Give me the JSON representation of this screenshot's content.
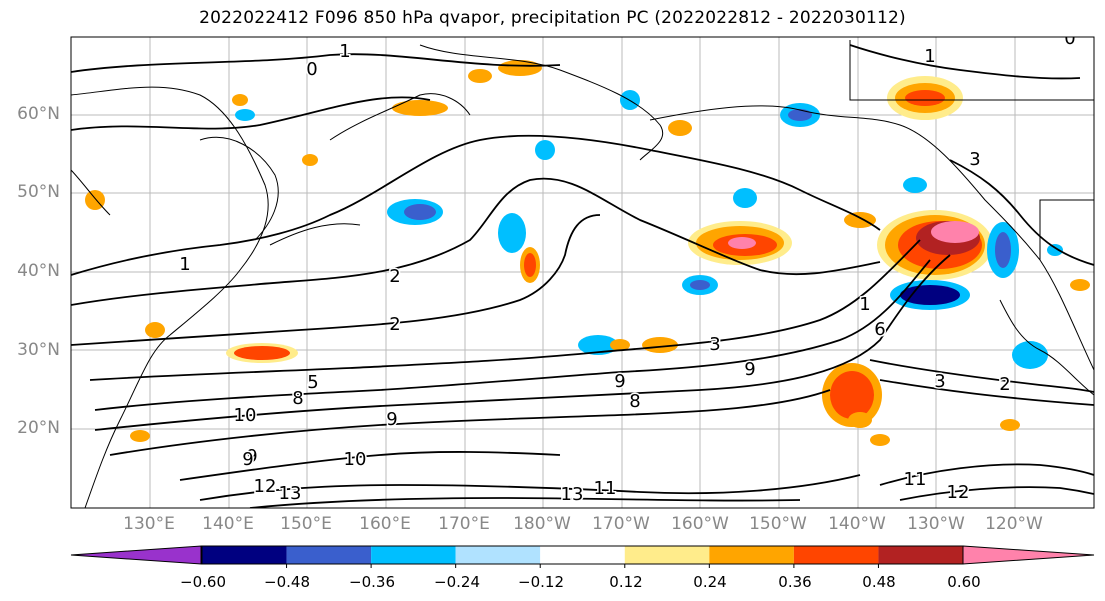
{
  "title": "2022022412 F096 850 hPa qvapor, precipitation PC (2022022812 - 2022030112)",
  "lat_labels": [
    "60°N",
    "50°N",
    "40°N",
    "30°N",
    "20°N"
  ],
  "lon_labels": [
    "130°E",
    "140°E",
    "150°E",
    "160°E",
    "170°E",
    "180°W",
    "170°W",
    "160°W",
    "150°W",
    "140°W",
    "130°W",
    "120°W"
  ],
  "colorbar": {
    "ticks": [
      "−0.60",
      "−0.48",
      "−0.36",
      "−0.24",
      "−0.12",
      "0.12",
      "0.24",
      "0.36",
      "0.48",
      "0.60"
    ],
    "colors": [
      "#9932cc",
      "#000080",
      "#3a5fcd",
      "#00bfff",
      "#b0e2ff",
      "#ffffff",
      "#ffec8b",
      "#ffa500",
      "#ff4500",
      "#b22222",
      "#ff82ab"
    ]
  },
  "contour_labels": [
    "1",
    "0",
    "1",
    "0",
    "3",
    "1",
    "2",
    "2",
    "5",
    "8",
    "10",
    "9",
    "9",
    "10",
    "12",
    "13",
    "13",
    "11",
    "9",
    "8",
    "9",
    "3",
    "3",
    "2",
    "6",
    "11",
    "12",
    "9",
    "1"
  ]
}
